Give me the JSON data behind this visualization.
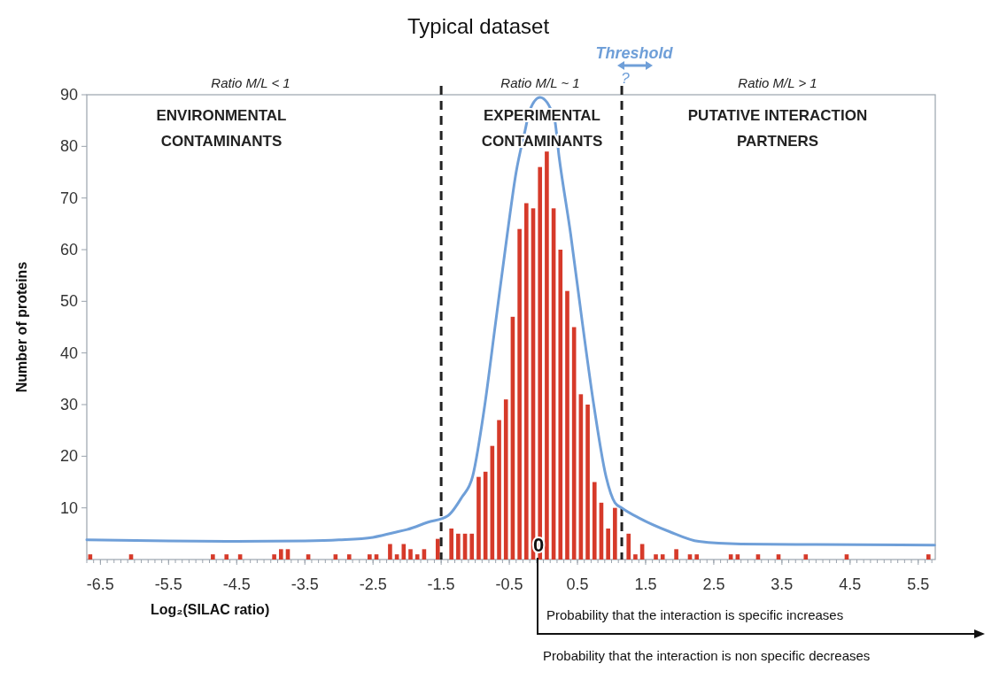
{
  "chart_data": {
    "type": "histogram",
    "title": "Typical dataset",
    "xlabel": "Log₂(SILAC ratio)",
    "ylabel": "Number of proteins",
    "bins": [
      -6.7,
      -6.6,
      -6.5,
      -6.4,
      -6.3,
      -6.2,
      -6.1,
      -6,
      -5.9,
      -5.8,
      -5.7,
      -5.6,
      -5.5,
      -5.4,
      -5.3,
      -5.2,
      -5.1,
      -5,
      -4.9,
      -4.8,
      -4.7,
      -4.6,
      -4.5,
      -4.4,
      -4.3,
      -4.2,
      -4.1,
      -4,
      -3.9,
      -3.8,
      -3.7,
      -3.6,
      -3.5,
      -3.4,
      -3.3,
      -3.2,
      -3.1,
      -3,
      -2.9,
      -2.8,
      -2.7,
      -2.6,
      -2.5,
      -2.4,
      -2.3,
      -2.2,
      -2.1,
      -2,
      -1.9,
      -1.8,
      -1.7,
      -1.6,
      -1.5,
      -1.4,
      -1.3,
      -1.2,
      -1.1,
      -1,
      -0.9,
      -0.8,
      -0.7,
      -0.6,
      -0.5,
      -0.4,
      -0.3,
      -0.2,
      -0.1,
      0,
      0.1,
      0.2,
      0.3,
      0.4,
      0.5,
      0.6,
      0.7,
      0.8,
      0.9,
      1,
      1.1,
      1.2,
      1.3,
      1.4,
      1.5,
      1.6,
      1.7,
      1.8,
      1.9,
      2,
      2.1,
      2.2,
      2.3,
      2.4,
      2.5,
      2.6,
      2.7,
      2.8,
      2.9,
      3,
      3.1,
      3.2,
      3.3,
      3.4,
      3.5,
      3.6,
      3.7,
      3.8,
      3.9,
      4,
      4.1,
      4.2,
      4.3,
      4.4,
      4.5,
      4.6,
      4.7,
      4.8,
      4.9,
      5,
      5.1,
      5.2,
      5.3,
      5.4,
      5.5,
      5.6,
      5.7
    ],
    "values": [
      1,
      0,
      0,
      0,
      0,
      0,
      1,
      0,
      0,
      0,
      0,
      0,
      0,
      0,
      0,
      0,
      0,
      0,
      1,
      0,
      1,
      0,
      1,
      0,
      0,
      0,
      0,
      1,
      2,
      2,
      0,
      0,
      1,
      0,
      0,
      0,
      1,
      0,
      1,
      0,
      0,
      1,
      1,
      0,
      3,
      1,
      3,
      2,
      1,
      2,
      0,
      4,
      0,
      6,
      5,
      5,
      5,
      16,
      17,
      22,
      27,
      31,
      47,
      64,
      69,
      68,
      76,
      79,
      68,
      60,
      52,
      45,
      32,
      30,
      15,
      11,
      6,
      10,
      null,
      5,
      1,
      3,
      0,
      1,
      1,
      0,
      2,
      0,
      1,
      1,
      0,
      0,
      0,
      0,
      1,
      1,
      0,
      0,
      1,
      0,
      0,
      1,
      0,
      0,
      0,
      1,
      0,
      0,
      0,
      0,
      0,
      1,
      0,
      0,
      0,
      0,
      0,
      0,
      0,
      0,
      0,
      0,
      0,
      1
    ],
    "color": "#d63a2a",
    "series": [
      {
        "type": "line",
        "color": "#6f9fd8",
        "x": [
          -6.7,
          -5.5,
          -4.5,
          -3.5,
          -3,
          -2.5,
          -2.2,
          -2,
          -1.7,
          -1.4,
          -1.2,
          -1.04,
          -0.87,
          -0.7,
          -0.53,
          -0.4,
          -0.27,
          -0.2,
          -0.05,
          0.16,
          0.23,
          0.4,
          0.57,
          0.75,
          0.92,
          1.05,
          1.15,
          1.41,
          1.85,
          2.28,
          2.9,
          4,
          5.74
        ],
        "values": [
          3.8,
          3.6,
          3.5,
          3.6,
          3.8,
          4.3,
          5.2,
          5.8,
          7.2,
          8.5,
          12,
          16,
          29,
          46,
          63,
          75,
          83,
          87,
          89.5,
          85.5,
          78,
          63,
          46,
          29,
          16,
          11,
          10,
          8,
          5.4,
          3.5,
          3,
          2.9,
          2.8
        ]
      }
    ],
    "xlim": [
      -6.7,
      5.75
    ],
    "ylim": [
      0,
      90
    ],
    "xticks": [
      -6.5,
      -5.5,
      -4.5,
      -3.5,
      -2.5,
      -1.5,
      -0.5,
      0.5,
      1.5,
      2.5,
      3.5,
      4.5,
      5.5
    ],
    "yticks": [
      10,
      20,
      30,
      40,
      50,
      60,
      70,
      80,
      90
    ],
    "ref_lines": [
      {
        "axis": "x",
        "value": -1.5,
        "color": "#222222",
        "line_style": "dashed"
      },
      {
        "axis": "x",
        "value": 1.15,
        "color": "#222222",
        "line_style": "dashed"
      }
    ],
    "annotations": [
      "Ratio M/L < 1",
      "Ratio M/L ~ 1",
      "Ratio M/L > 1",
      "ENVIRONMENTAL CONTAMINANTS",
      "EXPERIMENTAL CONTAMINANTS",
      "PUTATIVE INTERACTION PARTNERS",
      "Threshold",
      "?",
      "0",
      "Probability that the interaction is specific increases",
      "Probability that the interaction is non specific decreases"
    ]
  }
}
